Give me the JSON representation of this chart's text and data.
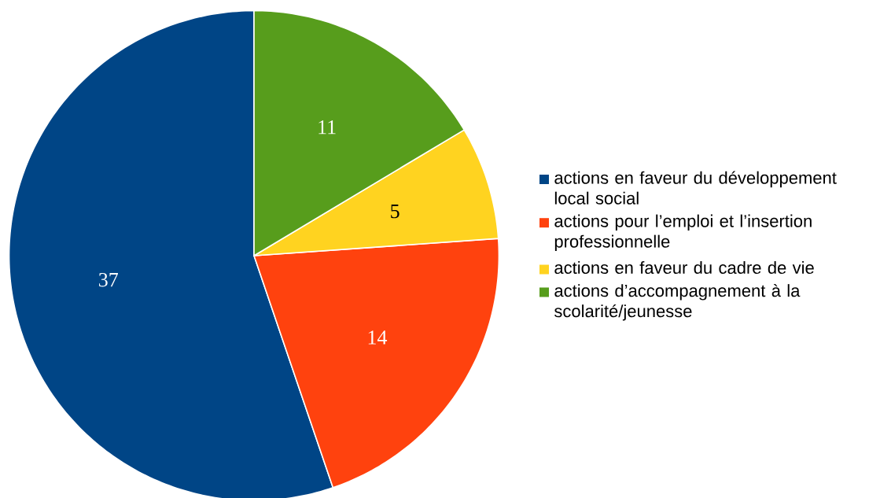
{
  "chart_data": {
    "type": "pie",
    "categories": [
      "actions en faveur du développement local social",
      "actions pour l’emploi et l’insertion professionnelle",
      "actions en faveur du cadre de vie",
      "actions d’accompagnement à la scolarité/jeunesse"
    ],
    "values": [
      37,
      14,
      5,
      11
    ],
    "colors": [
      "#004586",
      "#ff420e",
      "#ffd320",
      "#579d1c"
    ],
    "data_labels": true,
    "legend": "right"
  }
}
